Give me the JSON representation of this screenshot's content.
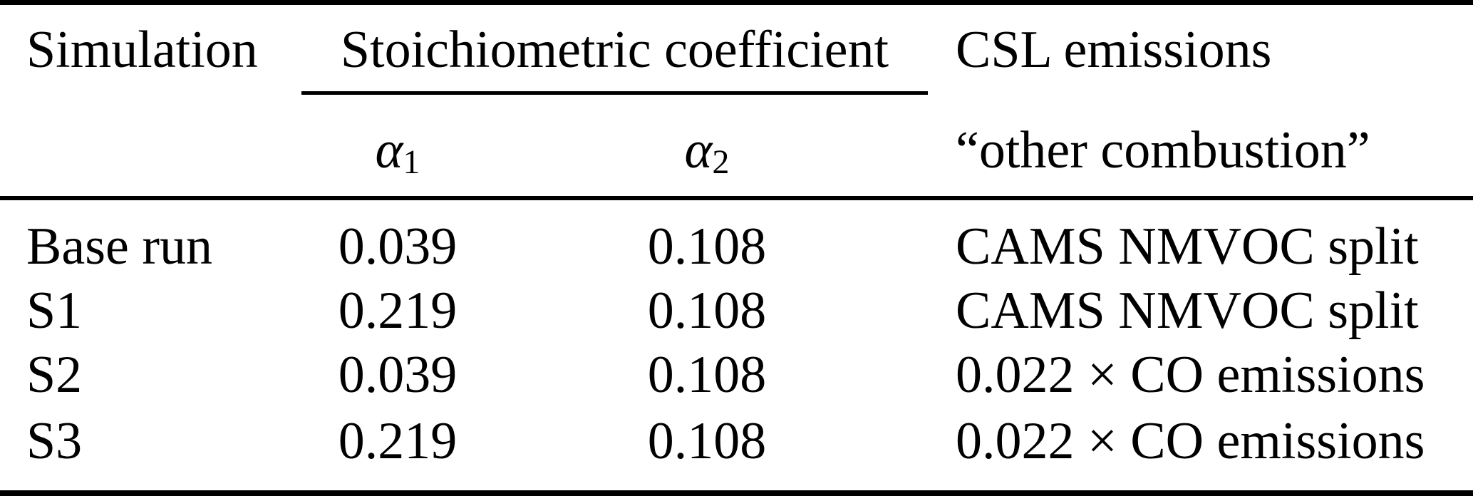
{
  "table": {
    "headers": {
      "simulation": "Simulation",
      "stoichiometric_coefficient": "Stoichiometric coefficient",
      "csl_emissions": "CSL emissions"
    },
    "subheaders": {
      "alpha1": {
        "symbol": "α",
        "subscript": "1"
      },
      "alpha2": {
        "symbol": "α",
        "subscript": "2"
      },
      "other_combustion": "“other combustion”"
    },
    "rows": [
      {
        "simulation": "Base run",
        "alpha1": "0.039",
        "alpha2": "0.108",
        "csl_emissions": "CAMS NMVOC split"
      },
      {
        "simulation": "S1",
        "alpha1": "0.219",
        "alpha2": "0.108",
        "csl_emissions": "CAMS NMVOC split"
      },
      {
        "simulation": "S2",
        "alpha1": "0.039",
        "alpha2": "0.108",
        "csl_emissions": "0.022 × CO emissions"
      },
      {
        "simulation": "S3",
        "alpha1": "0.219",
        "alpha2": "0.108",
        "csl_emissions": "0.022 × CO emissions"
      }
    ],
    "colors": {
      "text": "#000000",
      "rule": "#000000",
      "background": "#ffffff"
    }
  }
}
